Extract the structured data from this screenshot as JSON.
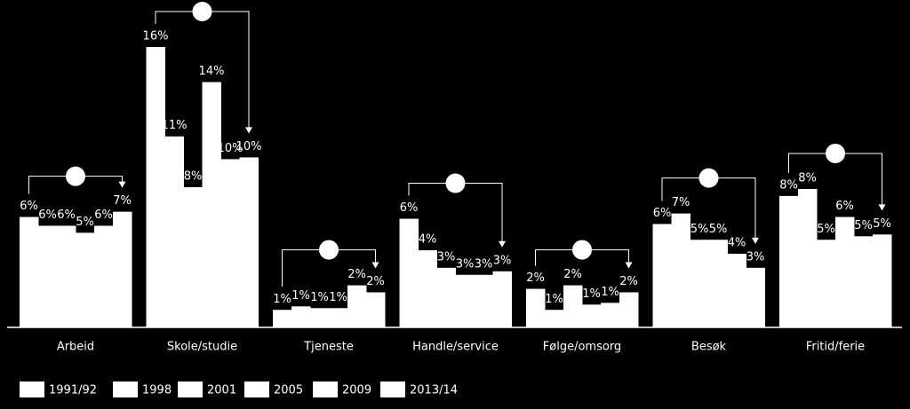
{
  "chart_data": {
    "type": "bar",
    "categories": [
      "Arbeid",
      "Skole/studie",
      "Tjeneste",
      "Handle/service",
      "Følge/omsorg",
      "Besøk",
      "Fritid/ferie"
    ],
    "ylim": [
      0,
      16
    ],
    "series": [
      {
        "name": "1991/92",
        "color": "#ffffff",
        "values": [
          6.3,
          16.0,
          1.0,
          6.2,
          2.2,
          5.9,
          7.5
        ],
        "value_labels": [
          "6%",
          "16%",
          "1%",
          "6%",
          "2%",
          "6%",
          "8%"
        ]
      },
      {
        "name": "1998",
        "color": "#ffffff",
        "values": [
          5.8,
          10.9,
          1.2,
          4.4,
          1.0,
          6.5,
          7.9
        ],
        "value_labels": [
          "6%",
          "11%",
          "1%",
          "4%",
          "1%",
          "7%",
          "8%"
        ]
      },
      {
        "name": "2001",
        "color": "#ffffff",
        "values": [
          5.8,
          8.0,
          1.1,
          3.4,
          2.4,
          5.0,
          5.0
        ],
        "value_labels": [
          "6%",
          "8%",
          "1%",
          "3%",
          "2%",
          "5%",
          "5%"
        ]
      },
      {
        "name": "2005",
        "color": "#ffffff",
        "values": [
          5.4,
          14.0,
          1.1,
          3.0,
          1.3,
          5.0,
          6.3
        ],
        "value_labels": [
          "5%",
          "14%",
          "1%",
          "3%",
          "1%",
          "5%",
          "6%"
        ]
      },
      {
        "name": "2009",
        "color": "#ffffff",
        "values": [
          5.8,
          9.6,
          2.4,
          3.0,
          1.4,
          4.2,
          5.2
        ],
        "value_labels": [
          "6%",
          "10%",
          "2%",
          "3%",
          "1%",
          "4%",
          "5%"
        ]
      },
      {
        "name": "2013/14",
        "color": "#ffffff",
        "values": [
          6.6,
          9.7,
          2.0,
          3.2,
          2.0,
          3.4,
          5.3
        ],
        "value_labels": [
          "7%",
          "10%",
          "2%",
          "3%",
          "2%",
          "3%",
          "5%"
        ]
      }
    ]
  }
}
